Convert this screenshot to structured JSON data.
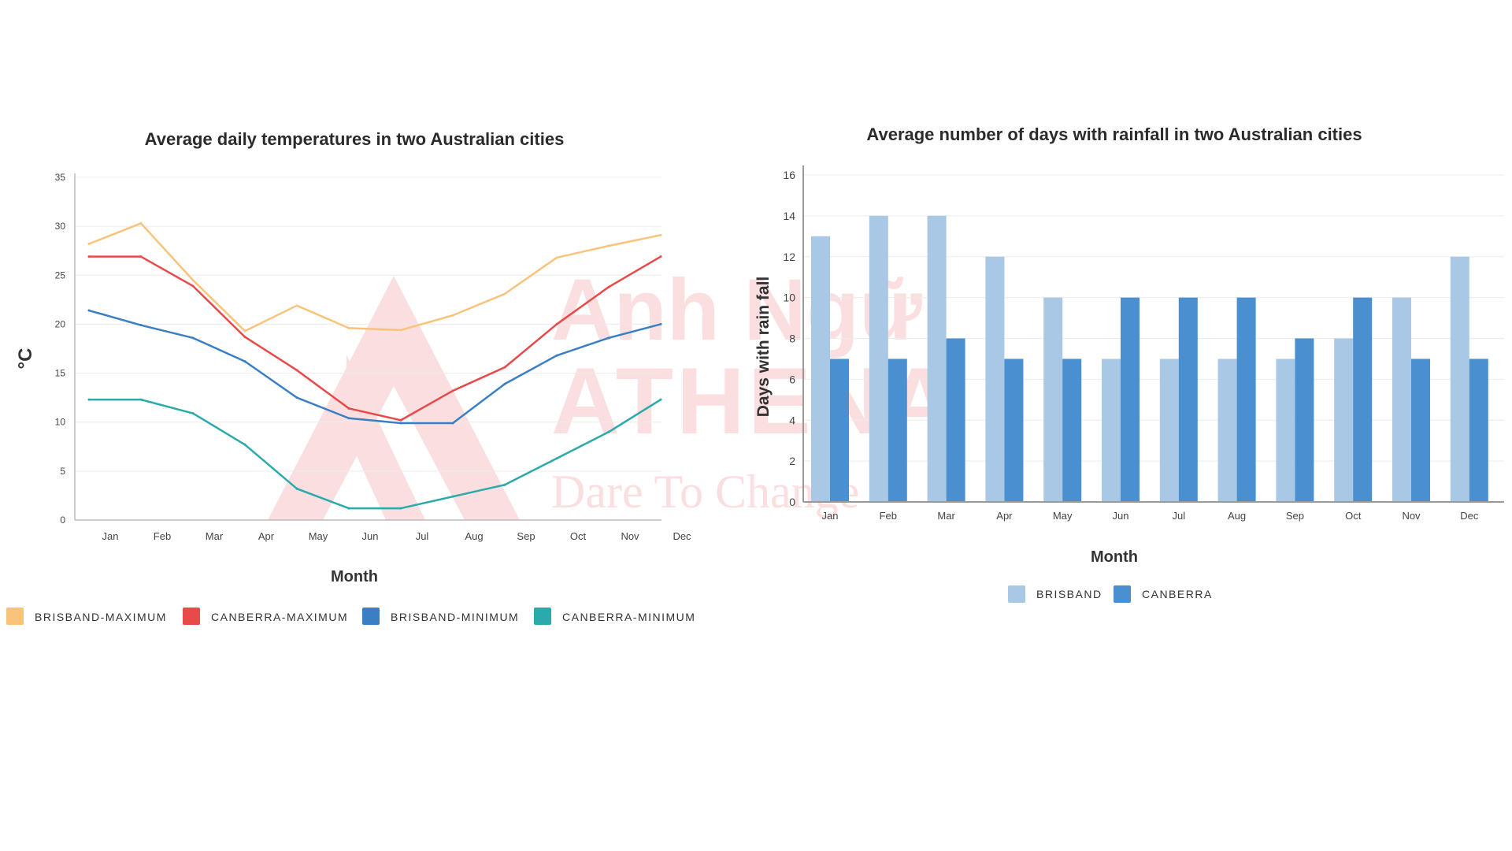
{
  "chart_data": [
    {
      "type": "line",
      "title": "Average daily temperatures in two Australian cities",
      "xlabel": "Month",
      "ylabel": "°C",
      "ylim": [
        0,
        35
      ],
      "yticks": [
        0,
        5,
        10,
        15,
        20,
        25,
        30,
        35
      ],
      "categories": [
        "Jan",
        "Feb",
        "Mar",
        "Apr",
        "May",
        "Jun",
        "Jul",
        "Aug",
        "Sep",
        "Oct",
        "Nov",
        "Dec"
      ],
      "grid": true,
      "legend_position": "bottom",
      "series": [
        {
          "name": "BRISBAND-MAXIMUM",
          "color": "#f9c47a",
          "values": [
            28.2,
            30.3,
            24.5,
            19.3,
            21.9,
            19.6,
            19.4,
            20.9,
            23.1,
            26.8,
            28.0,
            29.1
          ]
        },
        {
          "name": "CANBERRA-MAXIMUM",
          "color": "#e84a4a",
          "values": [
            26.9,
            26.9,
            23.9,
            18.7,
            15.3,
            11.4,
            10.2,
            13.2,
            15.6,
            20.0,
            23.8,
            26.9
          ]
        },
        {
          "name": "BRISBAND-MINIMUM",
          "color": "#3a7fc4",
          "values": [
            21.4,
            19.9,
            18.6,
            16.2,
            12.5,
            10.4,
            9.9,
            9.9,
            13.9,
            16.8,
            18.6,
            20.0
          ]
        },
        {
          "name": "CANBERRA-MINIMUM",
          "color": "#2aaaaa",
          "values": [
            12.3,
            12.3,
            10.9,
            7.7,
            3.2,
            1.2,
            1.2,
            2.4,
            3.6,
            6.3,
            9.0,
            12.3
          ]
        }
      ]
    },
    {
      "type": "bar",
      "title": "Average number of days with rainfall in two Australian cities",
      "xlabel": "Month",
      "ylabel": "Days with rain fall",
      "ylim": [
        0,
        16
      ],
      "yticks": [
        0,
        2,
        4,
        6,
        8,
        10,
        12,
        14,
        16
      ],
      "categories": [
        "Jan",
        "Feb",
        "Mar",
        "Apr",
        "May",
        "Jun",
        "Jul",
        "Aug",
        "Sep",
        "Oct",
        "Nov",
        "Dec"
      ],
      "grid": true,
      "legend_position": "bottom",
      "series": [
        {
          "name": "BRISBAND",
          "color": "#a8c8e6",
          "values": [
            13,
            14,
            14,
            12,
            10,
            7,
            7,
            7,
            7,
            8,
            10,
            12
          ]
        },
        {
          "name": "CANBERRA",
          "color": "#4a8fcf",
          "values": [
            7,
            7,
            8,
            7,
            7,
            10,
            10,
            10,
            8,
            10,
            7,
            7
          ]
        }
      ]
    }
  ],
  "watermark": {
    "line1": "Anh Ngữ",
    "line2": "ATHENA",
    "line3": "Dare To Change",
    "color": "#e63946"
  }
}
